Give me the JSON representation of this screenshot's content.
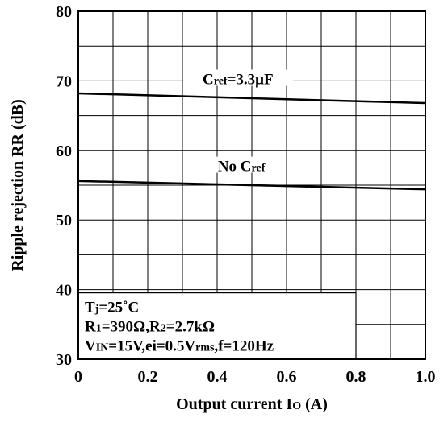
{
  "chart_data": {
    "type": "line",
    "xlabel_main": "Output current I",
    "xlabel_sub": "O",
    "xlabel_unit": "(A)",
    "ylabel": "Ripple rejection RR (dB)",
    "xlim": [
      0,
      1.0
    ],
    "ylim": [
      30,
      80
    ],
    "x_ticks": [
      "0",
      "0.2",
      "0.4",
      "0.6",
      "0.8",
      "1.0"
    ],
    "y_ticks": [
      "30",
      "40",
      "50",
      "60",
      "70",
      "80"
    ],
    "grid": true,
    "series": [
      {
        "label_main": "C",
        "label_sub": "ref",
        "label_tail": "=3.3μF",
        "x": [
          0,
          1.0
        ],
        "y": [
          68.2,
          66.8
        ]
      },
      {
        "label_main": "No C",
        "label_sub": "ref",
        "label_tail": "",
        "x": [
          0,
          1.0
        ],
        "y": [
          55.6,
          54.4
        ]
      }
    ],
    "conditions": [
      {
        "main": "T",
        "sub": "j",
        "tail": "=25˚C"
      },
      {
        "main": "R",
        "sub": "1",
        "tail": "=390Ω,R",
        "sub2": "2",
        "tail2": "=2.7kΩ"
      },
      {
        "main": "V",
        "sub": "IN",
        "tail": "=15V,ei=0.5V",
        "sub2": "rms",
        "tail2": ",f=120Hz"
      }
    ]
  }
}
